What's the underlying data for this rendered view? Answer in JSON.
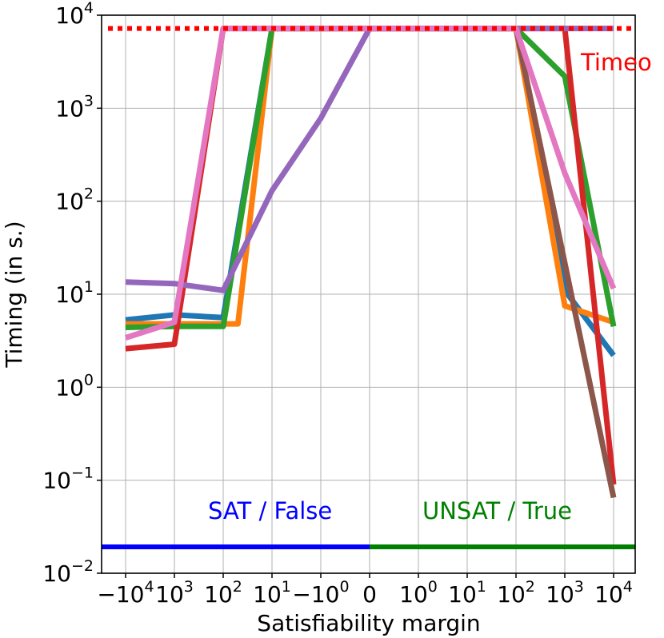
{
  "chart_data": {
    "type": "line",
    "xlabel": "Satisfiability margin",
    "ylabel": "Timing (in s.)",
    "yscale": "log",
    "ylim": [
      0.01,
      10000
    ],
    "grid": true,
    "x_categories": [
      "-10^4",
      "-10^3",
      "-10^2",
      "-10^1",
      "-10^0",
      "0",
      "10^0",
      "10^1",
      "10^2",
      "10^3",
      "10^4"
    ],
    "x_tick_labels": [
      {
        "base": "−10",
        "exp": "4"
      },
      {
        "base": "10",
        "exp": "3"
      },
      {
        "base": "10",
        "exp": "2"
      },
      {
        "base": "10",
        "exp": "1"
      },
      {
        "base": "−10",
        "exp": "0"
      },
      {
        "base": "0",
        "exp": ""
      },
      {
        "base": "10",
        "exp": "0"
      },
      {
        "base": "10",
        "exp": "1"
      },
      {
        "base": "10",
        "exp": "2"
      },
      {
        "base": "10",
        "exp": "3"
      },
      {
        "base": "10",
        "exp": "4"
      }
    ],
    "y_tick_labels": [
      {
        "value": 10000,
        "base": "10",
        "exp": "4"
      },
      {
        "value": 1000,
        "base": "10",
        "exp": "3"
      },
      {
        "value": 100,
        "base": "10",
        "exp": "2"
      },
      {
        "value": 10,
        "base": "10",
        "exp": "1"
      },
      {
        "value": 1,
        "base": "10",
        "exp": "0"
      },
      {
        "value": 0.1,
        "base": "10",
        "exp": "−1"
      },
      {
        "value": 0.01,
        "base": "10",
        "exp": "−2"
      }
    ],
    "timeout": {
      "value": 7200,
      "label": "Timeo",
      "color": "#ff0000"
    },
    "regions": [
      {
        "label": "SAT / False",
        "color": "#0000ff",
        "from": "-10^4",
        "to": "0"
      },
      {
        "label": "UNSAT / True",
        "color": "#008000",
        "from": "0",
        "to": "10^4"
      }
    ],
    "series": [
      {
        "color": "#1f77b4",
        "points": [
          [
            -10000,
            5.3
          ],
          [
            -1000,
            6.0
          ],
          [
            -100,
            5.6
          ],
          [
            -10,
            7200
          ],
          [
            -1,
            7200
          ],
          [
            100,
            7200
          ],
          [
            1000,
            11
          ],
          [
            10000,
            2.2
          ]
        ]
      },
      {
        "color": "#ff7f0e",
        "points": [
          [
            -10000,
            4.8
          ],
          [
            -1000,
            4.8
          ],
          [
            -100,
            4.8
          ],
          [
            -50,
            4.8
          ],
          [
            -10,
            7200
          ],
          [
            -1,
            7200
          ],
          [
            100,
            7200
          ],
          [
            1000,
            7.5
          ],
          [
            10000,
            5.0
          ]
        ]
      },
      {
        "color": "#2ca02c",
        "points": [
          [
            -10000,
            4.4
          ],
          [
            -1000,
            4.5
          ],
          [
            -100,
            4.5
          ],
          [
            -10,
            7200
          ],
          [
            -1,
            7200
          ],
          [
            100,
            7200
          ],
          [
            1000,
            2200
          ],
          [
            10000,
            4.5
          ]
        ]
      },
      {
        "color": "#d62728",
        "points": [
          [
            -10000,
            2.6
          ],
          [
            -1000,
            2.9
          ],
          [
            -100,
            7200
          ],
          [
            -1,
            7200
          ],
          [
            1000,
            7200
          ],
          [
            10000,
            0.09
          ]
        ]
      },
      {
        "color": "#9467bd",
        "points": [
          [
            -10000,
            13.5
          ],
          [
            -1000,
            13
          ],
          [
            -100,
            11
          ],
          [
            -10,
            130
          ],
          [
            -1,
            780
          ],
          [
            0,
            7200
          ],
          [
            10000,
            7200
          ]
        ]
      },
      {
        "color": "#8c564b",
        "points": [
          [
            100,
            7200
          ],
          [
            10000,
            0.065
          ]
        ]
      },
      {
        "color": "#e377c2",
        "points": [
          [
            -10000,
            3.4
          ],
          [
            -1000,
            5.0
          ],
          [
            -100,
            7200
          ],
          [
            -1,
            7200
          ],
          [
            100,
            7200
          ],
          [
            1000,
            200
          ],
          [
            10000,
            11.5
          ]
        ]
      }
    ]
  }
}
